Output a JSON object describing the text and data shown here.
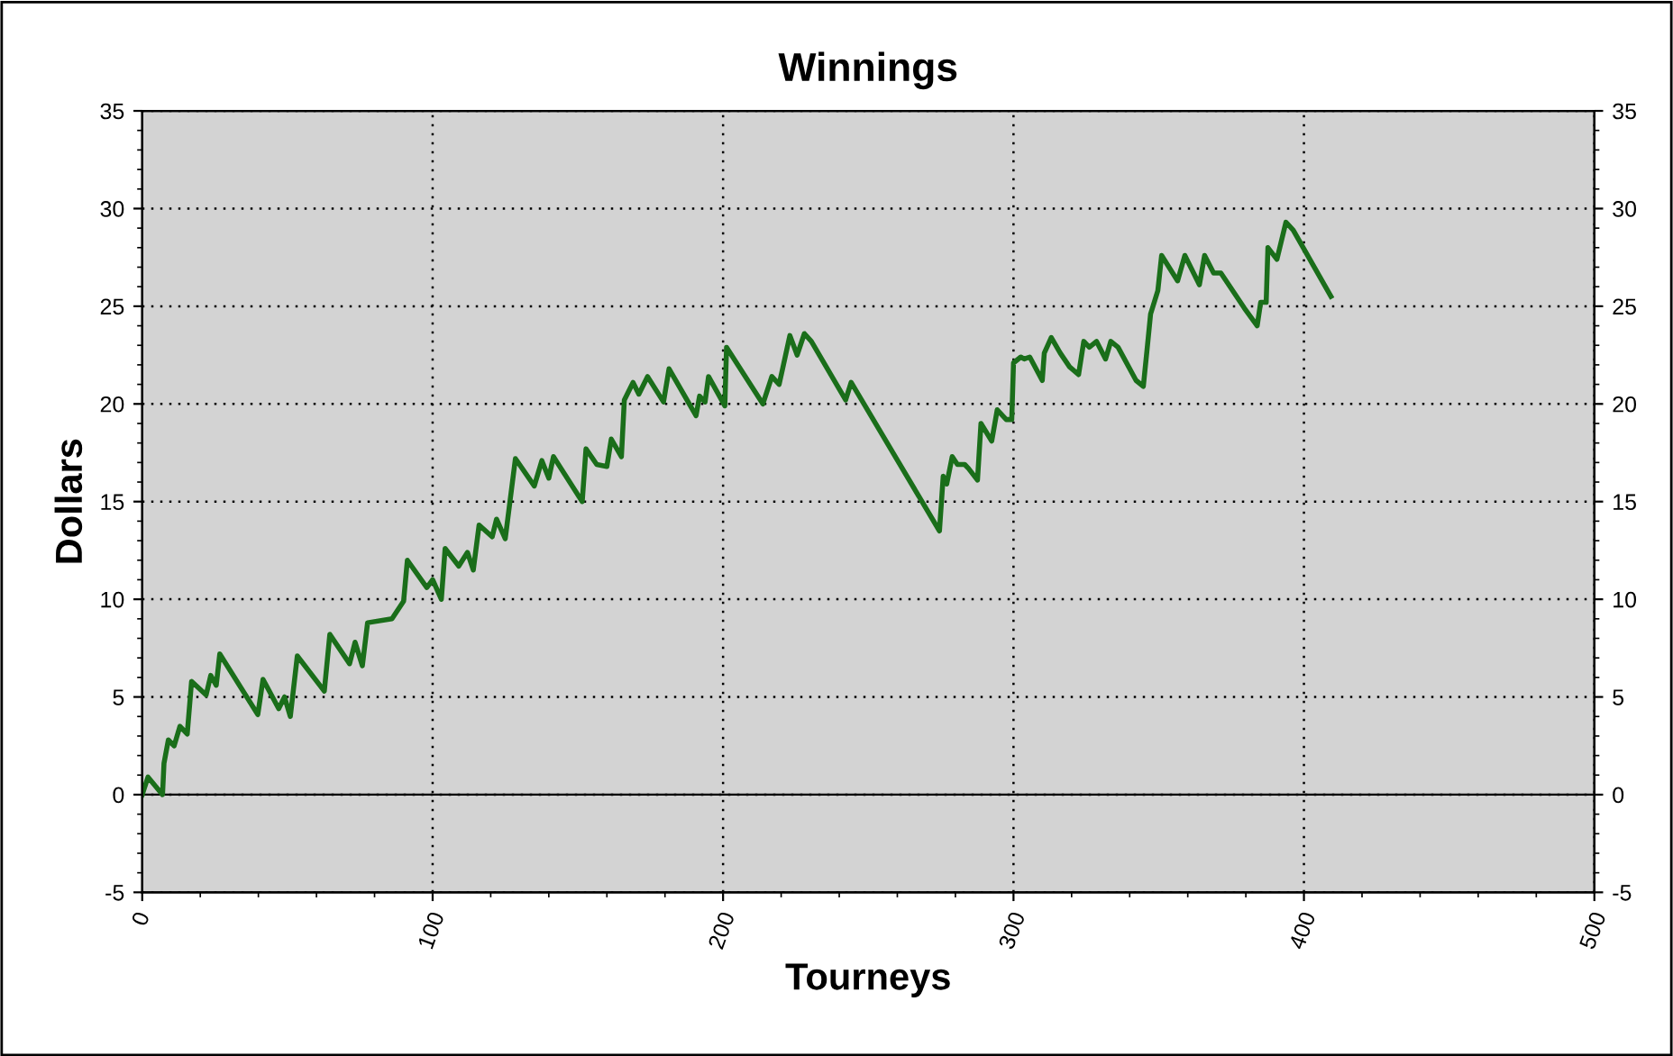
{
  "chart_data": {
    "type": "line",
    "title": "Winnings",
    "xlabel": "Tourneys",
    "ylabel": "Dollars",
    "xlim": [
      0,
      500
    ],
    "xticks": [
      0,
      100,
      200,
      300,
      400,
      500
    ],
    "ylim": [
      -5,
      35
    ],
    "yticks": [
      -5,
      0,
      5,
      10,
      15,
      20,
      25,
      30,
      35
    ],
    "y2lim": [
      -5,
      35
    ],
    "y2ticks": [
      -5,
      0,
      5,
      10,
      15,
      20,
      25,
      30,
      35
    ],
    "grid": true,
    "ref_lines": [
      {
        "axis": "y",
        "value": 0,
        "color": "#000000",
        "line_style": "solid"
      }
    ],
    "series": [
      {
        "color": "#1a6e1a",
        "x": [
          0,
          2,
          7,
          7.5,
          9,
          11,
          13,
          15.5,
          17,
          22,
          23.6,
          25.5,
          26.7,
          39.8,
          41.6,
          47,
          49,
          51,
          53.4,
          62.7,
          64.6,
          71.4,
          73.3,
          75.8,
          77.6,
          86,
          90,
          91.3,
          98,
          100,
          103,
          104.3,
          109,
          112,
          114,
          116,
          120.5,
          122,
          125,
          128.5,
          135,
          137.6,
          140,
          141.6,
          151.5,
          152.8,
          156.5,
          160,
          161.5,
          165,
          166,
          169,
          171,
          174,
          179.5,
          181.4,
          190.7,
          191.9,
          193.8,
          195,
          200.6,
          201.2,
          213.7,
          216.8,
          219.3,
          220.5,
          223,
          225.5,
          228,
          230.4,
          242.2,
          244.1,
          274.5,
          275.8,
          277,
          278.9,
          280.7,
          283.2,
          284.5,
          287.6,
          288.8,
          292.5,
          294.4,
          297.5,
          299.4,
          300,
          302.5,
          303.7,
          305.6,
          309.9,
          310.6,
          313,
          316.1,
          319.3,
          322.4,
          324.2,
          326.1,
          328.6,
          331.7,
          333.5,
          336,
          342.2,
          344.7,
          346,
          347.2,
          349.7,
          351,
          356.5,
          359,
          364,
          365.8,
          368.9,
          371.4,
          379.5,
          383.9,
          385.1,
          387,
          387.6,
          390.7,
          393.8,
          396.3,
          409.3
        ],
        "values": [
          0,
          0.9,
          0,
          1.6,
          2.8,
          2.5,
          3.5,
          3.1,
          5.8,
          5.1,
          6.1,
          5.6,
          7.2,
          4.1,
          5.9,
          4.4,
          5,
          4,
          7.1,
          5.3,
          8.2,
          6.7,
          7.8,
          6.6,
          8.8,
          9,
          9.9,
          12,
          10.6,
          11,
          10,
          12.6,
          11.7,
          12.4,
          11.5,
          13.8,
          13.2,
          14.1,
          13.1,
          17.2,
          15.8,
          17.1,
          16.2,
          17.3,
          15,
          17.7,
          16.9,
          16.8,
          18.2,
          17.3,
          20.2,
          21.1,
          20.5,
          21.4,
          20.1,
          21.8,
          19.4,
          20.4,
          20.1,
          21.4,
          19.9,
          22.9,
          20,
          21.4,
          21,
          21.8,
          23.5,
          22.5,
          23.6,
          23.2,
          20.2,
          21.1,
          13.5,
          16.3,
          15.9,
          17.3,
          16.9,
          16.9,
          16.7,
          16.1,
          19,
          18.1,
          19.7,
          19.2,
          19.2,
          22.1,
          22.4,
          22.3,
          22.4,
          21.2,
          22.6,
          23.4,
          22.6,
          21.9,
          21.5,
          23.2,
          22.9,
          23.2,
          22.3,
          23.2,
          22.9,
          21.2,
          20.9,
          22.8,
          24.6,
          25.8,
          27.6,
          26.3,
          27.6,
          26.1,
          27.6,
          26.7,
          26.7,
          24.9,
          24,
          25.2,
          25.2,
          28,
          27.4,
          29.3,
          28.9,
          25.5
        ]
      }
    ]
  }
}
